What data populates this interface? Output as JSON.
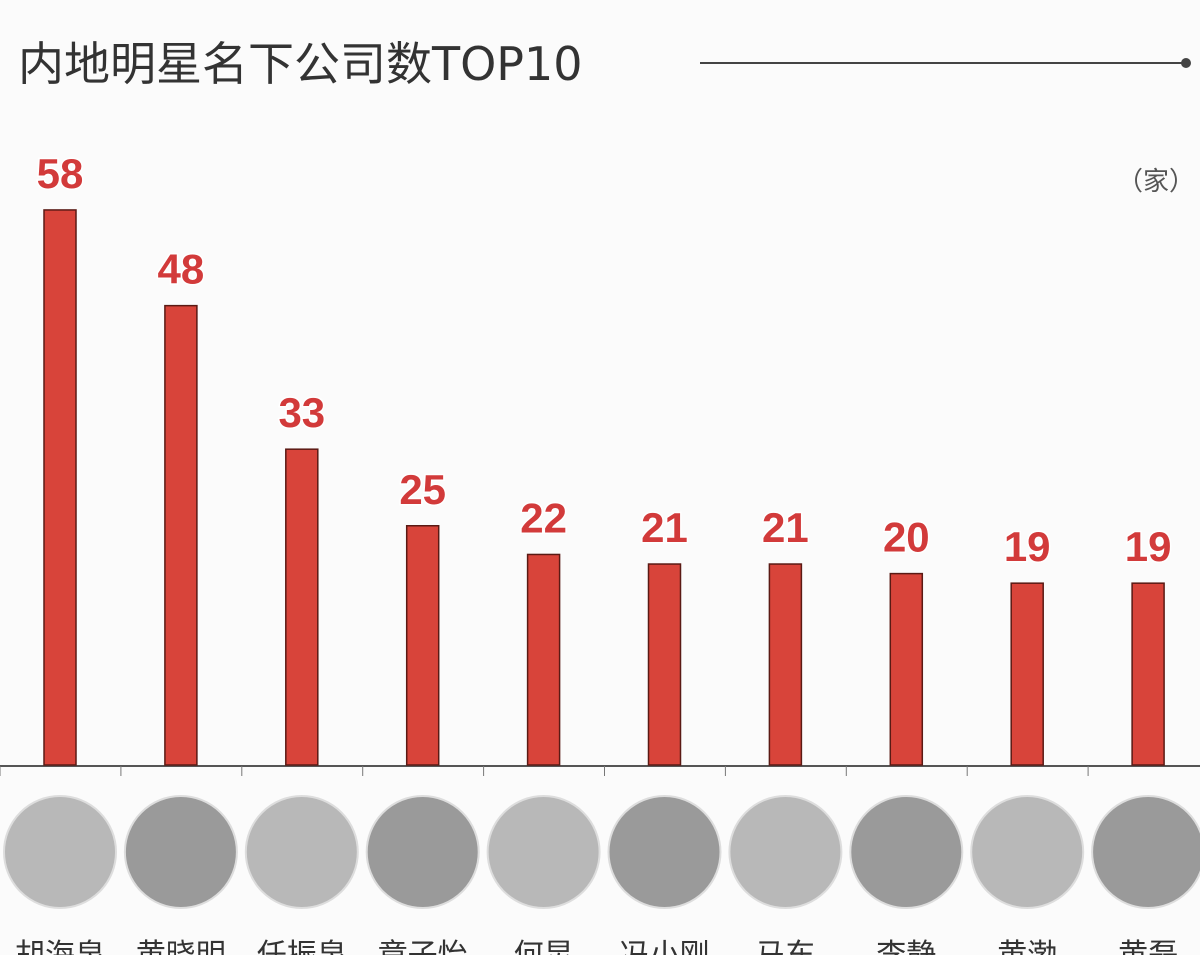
{
  "chart_data": {
    "type": "bar",
    "title": "内地明星名下公司数TOP10",
    "unit": "（家）",
    "categories": [
      "胡海泉",
      "黄晓明",
      "任振泉",
      "章子怡",
      "何炅",
      "冯小刚",
      "马东",
      "李静",
      "黄渤",
      "黄磊"
    ],
    "values": [
      58,
      48,
      33,
      25,
      22,
      21,
      21,
      20,
      19,
      19
    ],
    "color": "#d8443a"
  }
}
